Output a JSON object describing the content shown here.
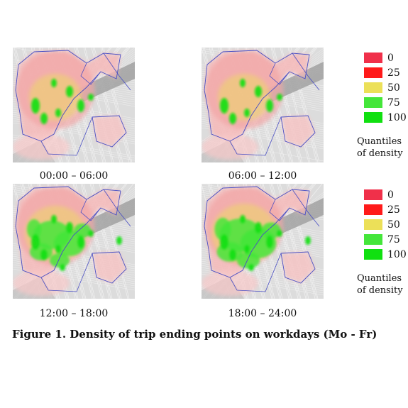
{
  "panels": [
    {
      "time_label": "00:00 – 06:00",
      "hotspot_level": 1
    },
    {
      "time_label": "06:00 – 12:00",
      "hotspot_level": 1
    },
    {
      "time_label": "12:00 – 18:00",
      "hotspot_level": 3
    },
    {
      "time_label": "18:00 – 24:00",
      "hotspot_level": 4
    }
  ],
  "legend": {
    "entries": [
      {
        "label": "0",
        "color": "#f0304a"
      },
      {
        "label": "25",
        "color": "#ff1a1a"
      },
      {
        "label": "50",
        "color": "#ece058"
      },
      {
        "label": "75",
        "color": "#44e63a"
      },
      {
        "label": "100",
        "color": "#10e010"
      }
    ],
    "note_line1": "Quantiles",
    "note_line2": "of density"
  },
  "figure_title": "Figure 1. Density of trip ending points on workdays (Mo - Fr)"
}
